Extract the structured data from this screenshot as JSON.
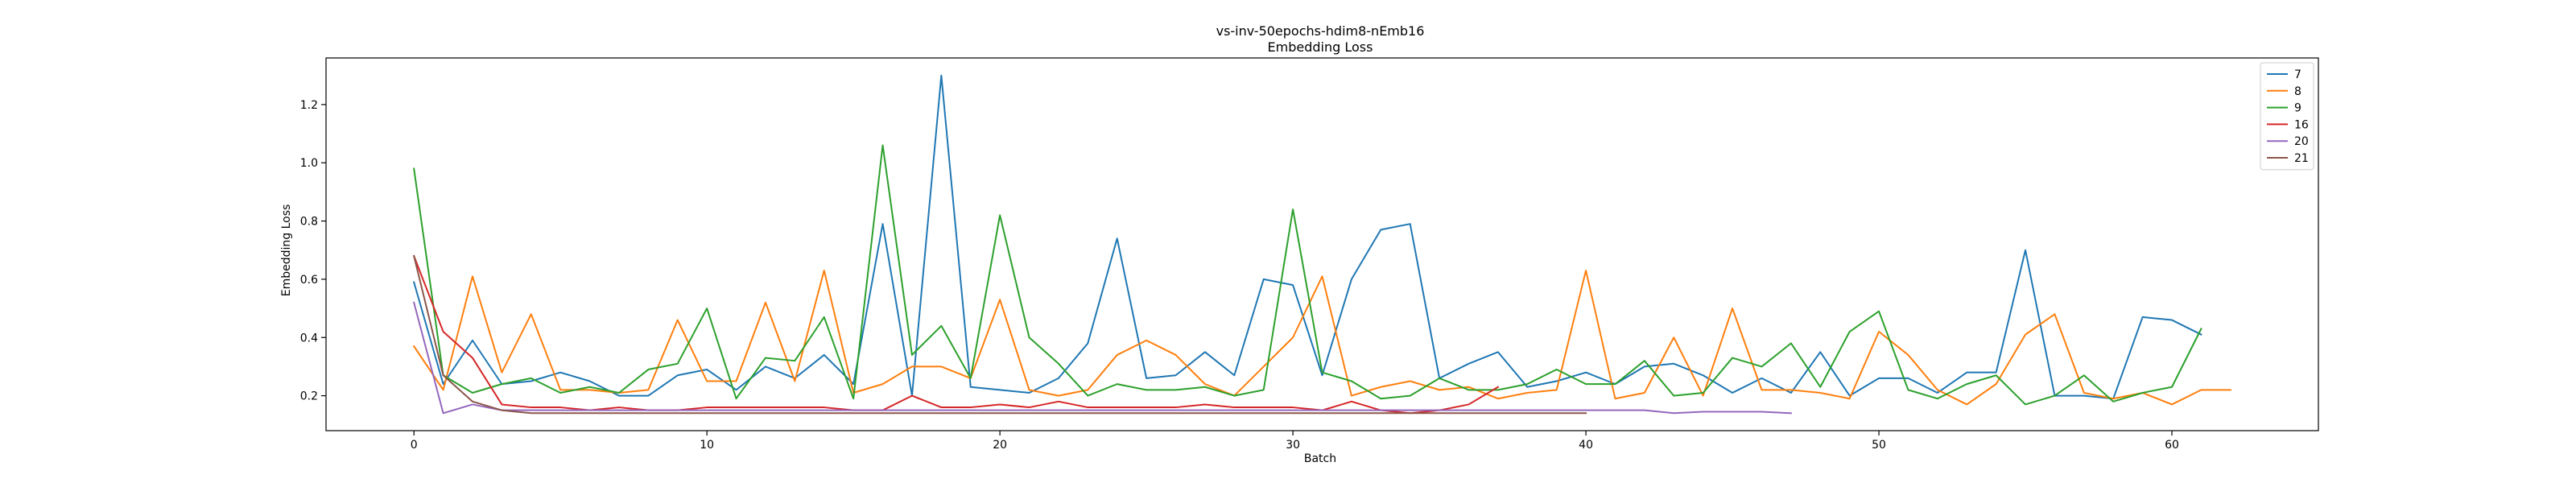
{
  "chart_data": {
    "type": "line",
    "title": "vs-inv-50epochs-hdim8-nEmb16",
    "subtitle": "Embedding Loss",
    "xlabel": "Batch",
    "ylabel": "Embedding Loss",
    "xlim": [
      -3,
      65
    ],
    "ylim": [
      0.08,
      1.36
    ],
    "xticks": [
      0,
      10,
      20,
      30,
      40,
      50,
      60
    ],
    "xtick_labels": [
      "0",
      "10",
      "20",
      "30",
      "40",
      "50",
      "60"
    ],
    "yticks": [
      0.2,
      0.4,
      0.6,
      0.8,
      1.0,
      1.2
    ],
    "ytick_labels": [
      "0.2",
      "0.4",
      "0.6",
      "0.8",
      "1.0",
      "1.2"
    ],
    "grid": false,
    "legend_position": "top-right",
    "series": [
      {
        "name": "7",
        "color": "#1f77b4",
        "values": [
          0.59,
          0.24,
          0.39,
          0.24,
          0.25,
          0.28,
          0.25,
          0.2,
          0.2,
          0.27,
          0.29,
          0.22,
          0.3,
          0.26,
          0.34,
          0.24,
          0.79,
          0.2,
          1.3,
          0.23,
          0.22,
          0.21,
          0.26,
          0.38,
          0.74,
          0.26,
          0.27,
          0.35,
          0.27,
          0.6,
          0.58,
          0.27,
          0.6,
          0.77,
          0.79,
          0.26,
          0.31,
          0.35,
          0.23,
          0.25,
          0.28,
          0.24,
          0.3,
          0.31,
          0.27,
          0.21,
          0.26,
          0.21,
          0.35,
          0.2,
          0.26,
          0.26,
          0.21,
          0.28,
          0.28,
          0.7,
          0.2,
          0.2,
          0.19,
          0.47,
          0.46,
          0.41
        ]
      },
      {
        "name": "8",
        "color": "#ff7f0e",
        "values": [
          0.37,
          0.22,
          0.61,
          0.28,
          0.48,
          0.22,
          0.22,
          0.21,
          0.22,
          0.46,
          0.25,
          0.25,
          0.52,
          0.25,
          0.63,
          0.21,
          0.24,
          0.3,
          0.3,
          0.26,
          0.53,
          0.22,
          0.2,
          0.22,
          0.34,
          0.39,
          0.34,
          0.24,
          0.2,
          0.3,
          0.4,
          0.61,
          0.2,
          0.23,
          0.25,
          0.22,
          0.23,
          0.19,
          0.21,
          0.22,
          0.63,
          0.19,
          0.21,
          0.4,
          0.2,
          0.5,
          0.22,
          0.22,
          0.21,
          0.19,
          0.42,
          0.34,
          0.22,
          0.17,
          0.24,
          0.41,
          0.48,
          0.21,
          0.19,
          0.21,
          0.17,
          0.22,
          0.22
        ]
      },
      {
        "name": "9",
        "color": "#2ca02c",
        "values": [
          0.98,
          0.27,
          0.21,
          0.24,
          0.26,
          0.21,
          0.23,
          0.21,
          0.29,
          0.31,
          0.5,
          0.19,
          0.33,
          0.32,
          0.47,
          0.19,
          1.06,
          0.34,
          0.44,
          0.26,
          0.82,
          0.4,
          0.31,
          0.2,
          0.24,
          0.22,
          0.22,
          0.23,
          0.2,
          0.22,
          0.84,
          0.28,
          0.25,
          0.19,
          0.2,
          0.26,
          0.22,
          0.22,
          0.24,
          0.29,
          0.24,
          0.24,
          0.32,
          0.2,
          0.21,
          0.33,
          0.3,
          0.38,
          0.23,
          0.42,
          0.49,
          0.22,
          0.19,
          0.24,
          0.27,
          0.17,
          0.2,
          0.27,
          0.18,
          0.21,
          0.23,
          0.43
        ]
      },
      {
        "name": "16",
        "color": "#d62728",
        "values": [
          0.68,
          0.42,
          0.33,
          0.17,
          0.16,
          0.16,
          0.15,
          0.16,
          0.15,
          0.15,
          0.16,
          0.16,
          0.16,
          0.16,
          0.16,
          0.15,
          0.15,
          0.2,
          0.16,
          0.16,
          0.17,
          0.16,
          0.18,
          0.16,
          0.16,
          0.16,
          0.16,
          0.17,
          0.16,
          0.16,
          0.16,
          0.15,
          0.18,
          0.15,
          0.14,
          0.15,
          0.17,
          0.23
        ]
      },
      {
        "name": "20",
        "color": "#9467bd",
        "values": [
          0.52,
          0.14,
          0.17,
          0.15,
          0.15,
          0.15,
          0.15,
          0.15,
          0.15,
          0.15,
          0.15,
          0.15,
          0.15,
          0.15,
          0.15,
          0.15,
          0.15,
          0.15,
          0.15,
          0.15,
          0.15,
          0.15,
          0.15,
          0.15,
          0.15,
          0.15,
          0.15,
          0.15,
          0.15,
          0.15,
          0.15,
          0.15,
          0.15,
          0.15,
          0.15,
          0.15,
          0.15,
          0.15,
          0.15,
          0.15,
          0.15,
          0.15,
          0.15,
          0.14,
          0.145,
          0.145,
          0.145,
          0.14
        ]
      },
      {
        "name": "21",
        "color": "#8c564b",
        "values": [
          0.68,
          0.27,
          0.18,
          0.15,
          0.14,
          0.14,
          0.14,
          0.14,
          0.14,
          0.14,
          0.14,
          0.14,
          0.14,
          0.14,
          0.14,
          0.14,
          0.14,
          0.14,
          0.14,
          0.14,
          0.14,
          0.14,
          0.14,
          0.14,
          0.14,
          0.14,
          0.14,
          0.14,
          0.14,
          0.14,
          0.14,
          0.14,
          0.14,
          0.14,
          0.14,
          0.14,
          0.14,
          0.14,
          0.14,
          0.14,
          0.14
        ]
      }
    ]
  }
}
